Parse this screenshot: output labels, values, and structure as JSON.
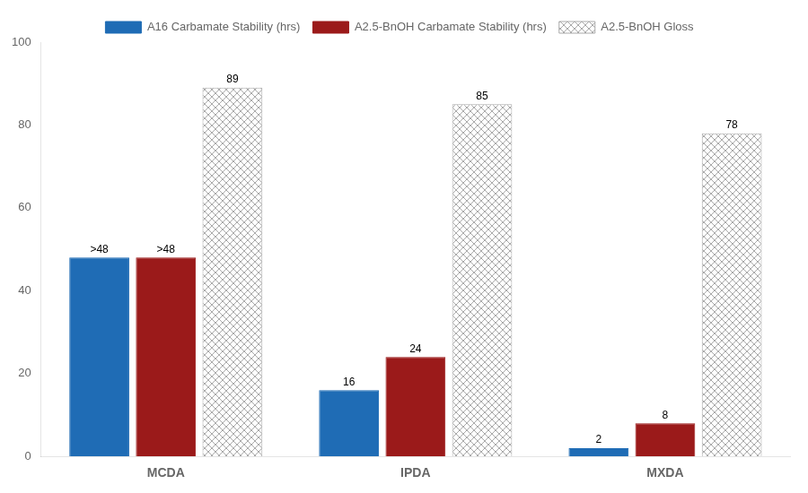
{
  "chart_data": {
    "type": "bar",
    "categories": [
      "MCDA",
      "IPDA",
      "MXDA"
    ],
    "series": [
      {
        "name": "A16 Carbamate Stability (hrs)",
        "color": "#1f6cb5",
        "values": [
          48,
          16,
          2
        ],
        "value_labels": [
          ">48",
          "16",
          "2"
        ]
      },
      {
        "name": "A2.5-BnOH Carbamate Stability (hrs)",
        "color": "#9b1a1a",
        "values": [
          48,
          24,
          8
        ],
        "value_labels": [
          ">48",
          "24",
          "8"
        ]
      },
      {
        "name": "A2.5-BnOH Gloss",
        "color": "#ffffff",
        "values": [
          89,
          85,
          78
        ]
      }
    ],
    "ylim": [
      0,
      100
    ],
    "yticks": [
      0,
      20,
      40,
      60,
      80,
      100
    ],
    "grid": false,
    "legend": "top",
    "data_labels": true
  }
}
